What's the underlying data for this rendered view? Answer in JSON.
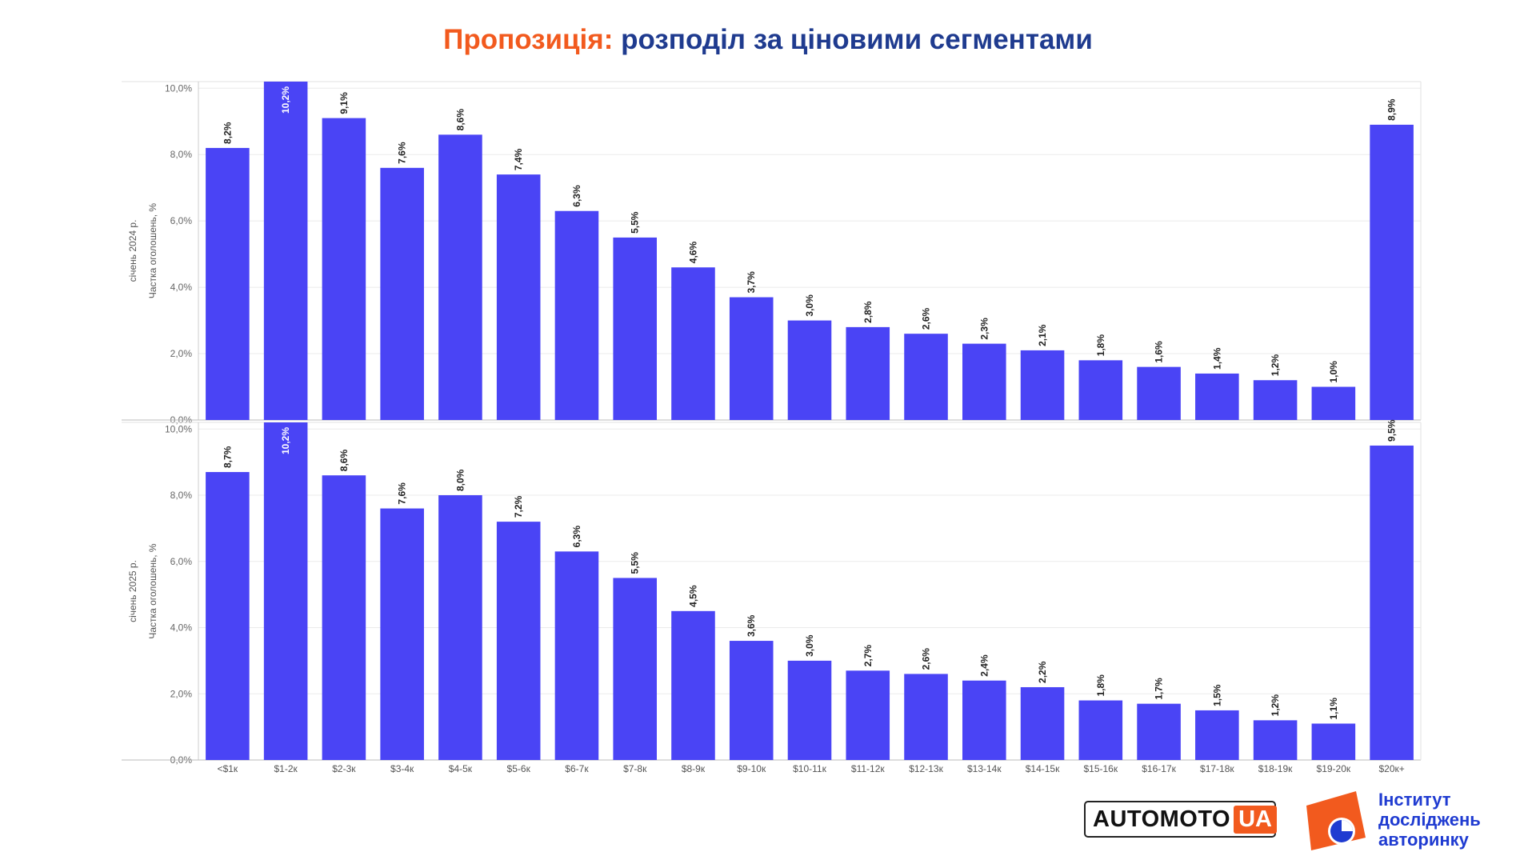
{
  "title": {
    "part1": "Пропозиція:",
    "part2": "розподіл за ціновими сегментами"
  },
  "chart_data": [
    {
      "type": "bar",
      "ylabel_line1": "січень 2024 р.",
      "ylabel_line2": "Частка оголошень, %",
      "ylim": [
        0,
        10.2
      ],
      "yticks": [
        "0,0%",
        "2,0%",
        "4,0%",
        "6,0%",
        "8,0%",
        "10,0%"
      ],
      "categories": [
        "<$1к",
        "$1-2к",
        "$2-3к",
        "$3-4к",
        "$4-5к",
        "$5-6к",
        "$6-7к",
        "$7-8к",
        "$8-9к",
        "$9-10к",
        "$10-11к",
        "$11-12к",
        "$12-13к",
        "$13-14к",
        "$14-15к",
        "$15-16к",
        "$16-17к",
        "$17-18к",
        "$18-19к",
        "$19-20к",
        "$20к+"
      ],
      "values": [
        8.2,
        10.2,
        9.1,
        7.6,
        8.6,
        7.4,
        6.3,
        5.5,
        4.6,
        3.7,
        3.0,
        2.8,
        2.6,
        2.3,
        2.1,
        1.8,
        1.6,
        1.4,
        1.2,
        1.0,
        8.9
      ],
      "labels": [
        "8,2%",
        "10,2%",
        "9,1%",
        "7,6%",
        "8,6%",
        "7,4%",
        "6,3%",
        "5,5%",
        "4,6%",
        "3,7%",
        "3,0%",
        "2,8%",
        "2,6%",
        "2,3%",
        "2,1%",
        "1,8%",
        "1,6%",
        "1,4%",
        "1,2%",
        "1,0%",
        "8,9%"
      ],
      "show_xticks": false,
      "grid": true,
      "bar_color": "#4a44f5"
    },
    {
      "type": "bar",
      "ylabel_line1": "січень 2025 р.",
      "ylabel_line2": "Частка оголошень, %",
      "ylim": [
        0,
        10.2
      ],
      "yticks": [
        "0,0%",
        "2,0%",
        "4,0%",
        "6,0%",
        "8,0%",
        "10,0%"
      ],
      "categories": [
        "<$1к",
        "$1-2к",
        "$2-3к",
        "$3-4к",
        "$4-5к",
        "$5-6к",
        "$6-7к",
        "$7-8к",
        "$8-9к",
        "$9-10к",
        "$10-11к",
        "$11-12к",
        "$12-13к",
        "$13-14к",
        "$14-15к",
        "$15-16к",
        "$16-17к",
        "$17-18к",
        "$18-19к",
        "$19-20к",
        "$20к+"
      ],
      "values": [
        8.7,
        10.2,
        8.6,
        7.6,
        8.0,
        7.2,
        6.3,
        5.5,
        4.5,
        3.6,
        3.0,
        2.7,
        2.6,
        2.4,
        2.2,
        1.8,
        1.7,
        1.5,
        1.2,
        1.1,
        9.5
      ],
      "labels": [
        "8,7%",
        "10,2%",
        "8,6%",
        "7,6%",
        "8,0%",
        "7,2%",
        "6,3%",
        "5,5%",
        "4,5%",
        "3,6%",
        "3,0%",
        "2,7%",
        "2,6%",
        "2,4%",
        "2,2%",
        "1,8%",
        "1,7%",
        "1,5%",
        "1,2%",
        "1,1%",
        "9,5%"
      ],
      "show_xticks": true,
      "grid": true,
      "bar_color": "#4a44f5"
    }
  ],
  "logos": {
    "automoto_text": "AUTOMOTO",
    "automoto_ua": "UA",
    "institute_line1": "Інститут",
    "institute_line2": "досліджень",
    "institute_line3": "авторинку",
    "brand_orange": "#f25a1e",
    "brand_blue": "#1f3bd1"
  }
}
